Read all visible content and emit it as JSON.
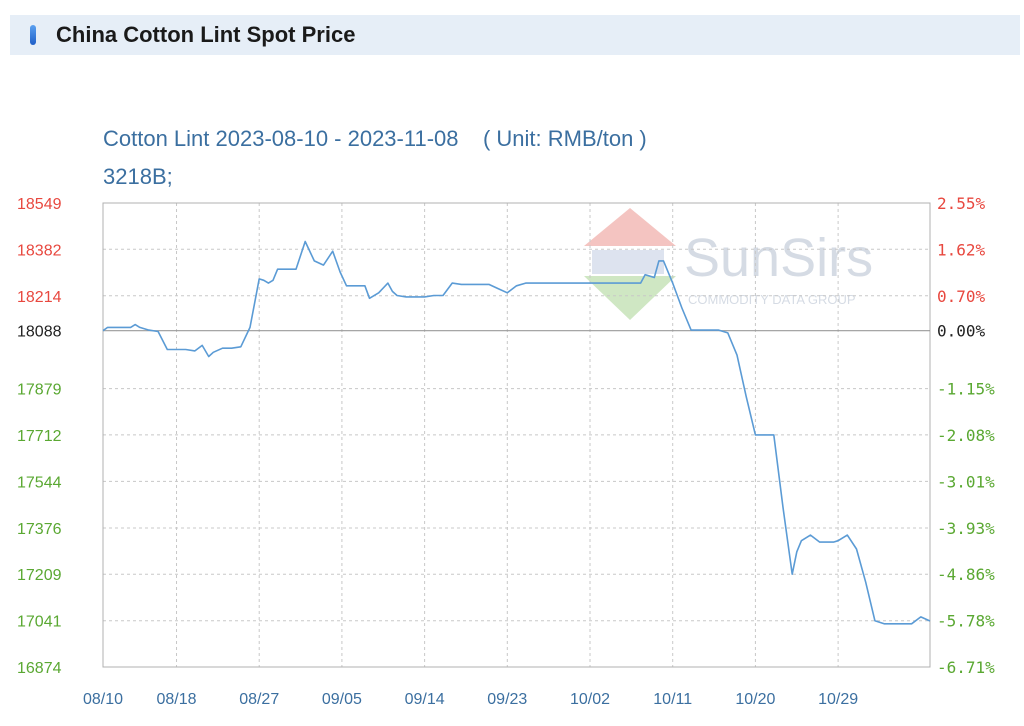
{
  "header": {
    "title": "China Cotton Lint Spot Price"
  },
  "chart_data": {
    "type": "line",
    "title": "Cotton Lint 2023-08-10 - 2023-11-08    ( Unit: RMB/ton )",
    "subtitle": "3218B;",
    "watermark": {
      "brand": "SunSirs",
      "tagline": "COMMODITY DATA GROUP"
    },
    "ylim": [
      16874,
      18549
    ],
    "baseline": 18088,
    "y_ticks_left": [
      "18549",
      "18382",
      "18214",
      "18088",
      "17879",
      "17712",
      "17544",
      "17376",
      "17209",
      "17041",
      "16874"
    ],
    "y_tick_values": [
      18549,
      18382,
      18214,
      18088,
      17879,
      17712,
      17544,
      17376,
      17209,
      17041,
      16874
    ],
    "y_ticks_right": [
      "2.55%",
      "1.62%",
      "0.70%",
      "0.00%",
      "-1.15%",
      "-2.08%",
      "-3.01%",
      "-3.93%",
      "-4.86%",
      "-5.78%",
      "-6.71%"
    ],
    "x_ticks": [
      "08/10",
      "08/18",
      "08/27",
      "09/05",
      "09/14",
      "09/23",
      "10/02",
      "10/11",
      "10/20",
      "10/29"
    ],
    "x_tick_days": [
      0,
      8,
      17,
      26,
      35,
      44,
      53,
      62,
      71,
      80
    ],
    "x_span_days": 90,
    "colors": {
      "line": "#5b9bd5",
      "up": "#e8483f",
      "down": "#5aa832",
      "neutral": "#222222",
      "axis_text": "#3b6fa0"
    },
    "series": [
      {
        "x": [
          0,
          0.5,
          2,
          3,
          3.5,
          4,
          5,
          6,
          7,
          8,
          9,
          10,
          10.8,
          11.5,
          12,
          13,
          14,
          15,
          16,
          17,
          17.5,
          18,
          18.5,
          19,
          20,
          21,
          22,
          23,
          24,
          25,
          25.8,
          26.5,
          27,
          28,
          28.5,
          29,
          30,
          31,
          31.5,
          32,
          33,
          34,
          35,
          36,
          37,
          38,
          39,
          40,
          41,
          42,
          43,
          44,
          45,
          46,
          47,
          48,
          49,
          50,
          51,
          52,
          53,
          54,
          55,
          56,
          57,
          58,
          58.5,
          59,
          60,
          60.5,
          61,
          62,
          63,
          64,
          65,
          66,
          67,
          68,
          69,
          70,
          71,
          72,
          73,
          74,
          75,
          75.5,
          76,
          77,
          78,
          79,
          79.5,
          80,
          81,
          82,
          83,
          84,
          85,
          86,
          87,
          88,
          89,
          90
        ],
        "y": [
          18088,
          18100,
          18100,
          18100,
          18110,
          18100,
          18090,
          18085,
          18020,
          18020,
          18020,
          18015,
          18035,
          17995,
          18010,
          18025,
          18025,
          18030,
          18100,
          18275,
          18270,
          18260,
          18270,
          18310,
          18310,
          18310,
          18410,
          18340,
          18325,
          18375,
          18300,
          18250,
          18250,
          18250,
          18250,
          18205,
          18225,
          18260,
          18230,
          18215,
          18210,
          18210,
          18210,
          18215,
          18215,
          18260,
          18255,
          18255,
          18255,
          18255,
          18240,
          18225,
          18250,
          18260,
          18260,
          18260,
          18260,
          18260,
          18260,
          18260,
          18260,
          18260,
          18260,
          18260,
          18260,
          18260,
          18260,
          18290,
          18280,
          18340,
          18340,
          18260,
          18170,
          18090,
          18090,
          18090,
          18090,
          18080,
          18000,
          17850,
          17712,
          17712,
          17712,
          17450,
          17209,
          17290,
          17330,
          17350,
          17325,
          17325,
          17325,
          17330,
          17350,
          17300,
          17180,
          17041,
          17030,
          17030,
          17030,
          17030,
          17055,
          17040
        ]
      }
    ]
  }
}
